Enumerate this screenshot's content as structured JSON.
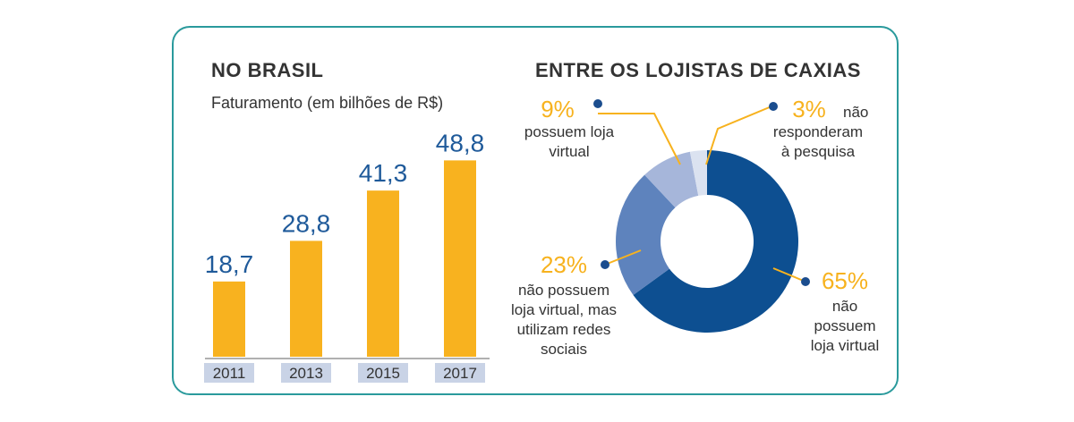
{
  "colors": {
    "bar": "#f8b21f",
    "value_text": "#1f5a9a",
    "year_box": "#c9d3e6",
    "accent_text": "#f7b21e",
    "leader": "#f7b21e",
    "dot": "#1b4d8e",
    "border": "#2a9a9c"
  },
  "chart_data": [
    {
      "type": "bar",
      "title": "NO BRASIL",
      "subtitle": "Faturamento (em bilhões de R$)",
      "categories": [
        "2011",
        "2013",
        "2015",
        "2017"
      ],
      "values": [
        18.7,
        28.8,
        41.3,
        48.8
      ],
      "value_labels": [
        "18,7",
        "28,8",
        "41,3",
        "48,8"
      ],
      "ylim": [
        0,
        50
      ],
      "xlabel": "",
      "ylabel": ""
    },
    {
      "type": "pie",
      "title": "ENTRE OS LOJISTAS DE CAXIAS",
      "donut": true,
      "slices": [
        {
          "value": 65,
          "pct_label": "65%",
          "desc": [
            "não",
            "possuem",
            "loja virtual"
          ],
          "color": "#0d4f91"
        },
        {
          "value": 23,
          "pct_label": "23%",
          "desc": [
            "não possuem",
            "loja virtual, mas",
            "utilizam redes",
            "sociais"
          ],
          "color": "#5e83bd"
        },
        {
          "value": 9,
          "pct_label": "9%",
          "desc": [
            "possuem loja",
            "virtual"
          ],
          "color": "#a6b6da"
        },
        {
          "value": 3,
          "pct_label": "3%",
          "desc_first": "não",
          "desc": [
            "responderam",
            "à pesquisa"
          ],
          "color": "#dbe2f0"
        }
      ]
    }
  ]
}
